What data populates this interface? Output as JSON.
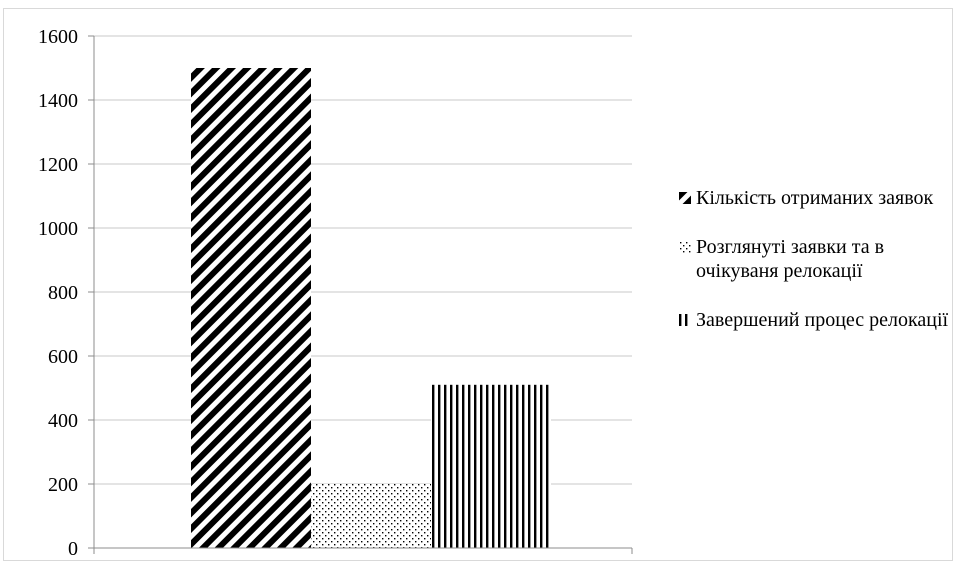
{
  "chart_data": {
    "type": "bar",
    "categories": [
      ""
    ],
    "series": [
      {
        "name": "Кількість отриманих заявок",
        "values": [
          1500
        ],
        "pattern": "diagonal-stripes"
      },
      {
        "name": "Розглянуті заявки та в очікуваня релокації",
        "values": [
          200
        ],
        "pattern": "dots"
      },
      {
        "name": "Завершений процес релокації",
        "values": [
          510
        ],
        "pattern": "vertical-stripes"
      }
    ],
    "title": "",
    "xlabel": "",
    "ylabel": "",
    "ylim": [
      0,
      1600
    ],
    "yticks": [
      "0",
      "200",
      "400",
      "600",
      "800",
      "1000",
      "1200",
      "1400",
      "1600"
    ],
    "grid": true,
    "legend_position": "right",
    "colors": {
      "bar": "#000000",
      "grid": "#c8c8c8",
      "axis": "#8c8c8c"
    }
  }
}
